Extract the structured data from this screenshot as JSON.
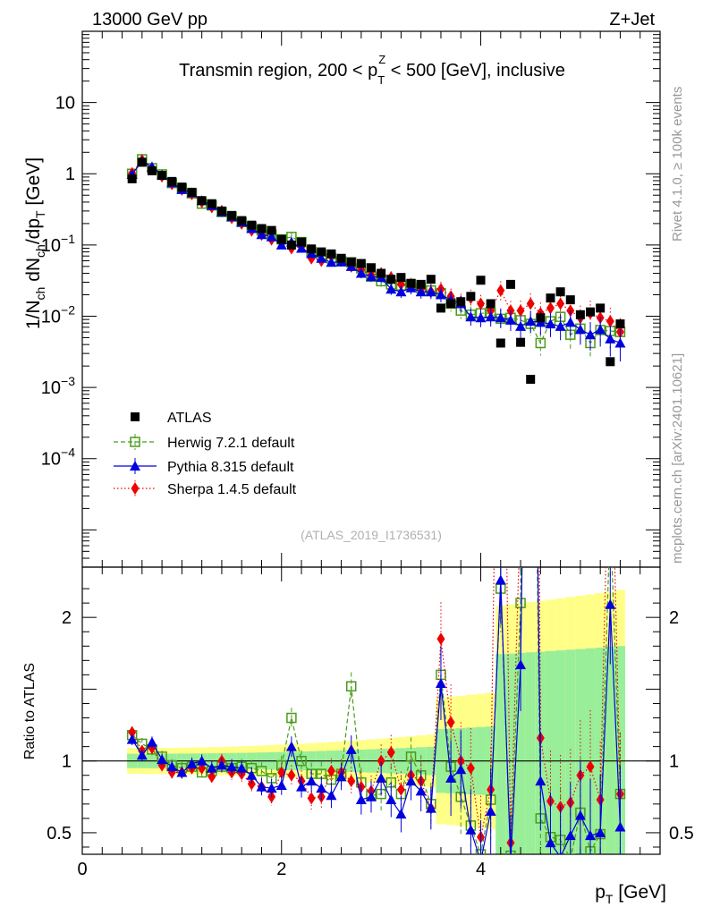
{
  "header": {
    "left": "13000 GeV pp",
    "right": "Z+Jet"
  },
  "side_labels": {
    "rivet": "Rivet 4.1.0, ≥ 100k events",
    "mcplots": "mcplots.cern.ch [arXiv:2401.10621]"
  },
  "chart_data": {
    "type": "scatter",
    "title": "Transmin region, 200 < p_T^Z < 500 [GeV], inclusive",
    "title_parts": {
      "pre": "Transmin region, 200 < p",
      "sup": "Z",
      "sub": "T",
      "post": " < 500 [GeV], inclusive"
    },
    "analysis_tag": "(ATLAS_2019_I1736531)",
    "ylabel": "1/N_ch dN_ch/dp_T [GeV]",
    "ylabel_parts": {
      "a": "1/N",
      "a_sub": "ch",
      "b": " dN",
      "b_sub": "ch",
      "c": "/dp",
      "c_sub": "T",
      "d": " [GeV]"
    },
    "xlabel": "p_T [GeV]",
    "xlabel_parts": {
      "pre": "p",
      "sub": "T",
      "post": " [GeV]"
    },
    "ratio_ylabel": "Ratio to ATLAS",
    "xlim": [
      0,
      5.8
    ],
    "ylim_log": [
      3e-06,
      100
    ],
    "ratio_ylim": [
      0.35,
      2.35
    ],
    "x_ticks": [
      {
        "v": 0,
        "label": "0"
      },
      {
        "v": 2,
        "label": "2"
      },
      {
        "v": 4,
        "label": "4"
      }
    ],
    "y_ticks": [
      {
        "v": 10,
        "label": "10",
        "exp": ""
      },
      {
        "v": 1,
        "label": "1",
        "exp": ""
      },
      {
        "v": 0.1,
        "label": "10",
        "exp": "−1"
      },
      {
        "v": 0.01,
        "label": "10",
        "exp": "−2"
      },
      {
        "v": 0.001,
        "label": "10",
        "exp": "−3"
      },
      {
        "v": 0.0001,
        "label": "10",
        "exp": "−4"
      }
    ],
    "ratio_ticks": [
      {
        "v": 0.5,
        "label": "0.5"
      },
      {
        "v": 1,
        "label": "1"
      },
      {
        "v": 2,
        "label": "2"
      }
    ],
    "legend_position": "lower-left",
    "x": [
      0.5,
      0.6,
      0.7,
      0.8,
      0.9,
      1.0,
      1.1,
      1.2,
      1.3,
      1.4,
      1.5,
      1.6,
      1.7,
      1.8,
      1.9,
      2.0,
      2.1,
      2.2,
      2.3,
      2.4,
      2.5,
      2.6,
      2.7,
      2.8,
      2.9,
      3.0,
      3.1,
      3.2,
      3.3,
      3.4,
      3.5,
      3.6,
      3.7,
      3.8,
      3.9,
      4.0,
      4.1,
      4.2,
      4.3,
      4.4,
      4.5,
      4.6,
      4.7,
      4.8,
      4.9,
      5.0,
      5.1,
      5.2,
      5.3,
      5.4
    ],
    "series": [
      {
        "name": "ATLAS",
        "color": "#000000",
        "marker": "square",
        "values": [
          0.85,
          1.45,
          1.1,
          0.95,
          0.78,
          0.65,
          0.55,
          0.42,
          0.38,
          0.3,
          0.26,
          0.22,
          0.19,
          0.17,
          0.16,
          0.12,
          0.1,
          0.11,
          0.088,
          0.08,
          0.075,
          0.065,
          0.058,
          0.055,
          0.048,
          0.04,
          0.033,
          0.035,
          0.029,
          0.028,
          0.033,
          0.013,
          0.015,
          0.016,
          0.019,
          0.032,
          0.015,
          0.0042,
          0.028,
          0.0043,
          0.0013,
          0.0095,
          0.018,
          0.022,
          0.017,
          0.0105,
          0.0115,
          0.013,
          0.0023,
          0.0078
        ]
      },
      {
        "name": "Herwig 7.2.1 default",
        "color": "#4b9b1b",
        "marker": "open-square",
        "line": "dashed",
        "values": [
          1.0,
          1.6,
          1.2,
          0.98,
          0.74,
          0.62,
          0.53,
          0.38,
          0.36,
          0.29,
          0.25,
          0.21,
          0.18,
          0.16,
          0.14,
          0.12,
          0.13,
          0.11,
          0.08,
          0.073,
          0.065,
          0.059,
          0.057,
          0.047,
          0.036,
          0.031,
          0.028,
          0.027,
          0.028,
          0.025,
          0.023,
          0.021,
          0.015,
          0.012,
          0.0105,
          0.011,
          0.011,
          0.0092,
          0.0095,
          0.0088,
          0.0078,
          0.0042,
          0.0085,
          0.0098,
          0.0055,
          0.0067,
          0.0042,
          0.0064,
          0.0062,
          0.006
        ]
      },
      {
        "name": "Pythia 8.315 default",
        "color": "#0000dd",
        "marker": "triangle",
        "line": "solid",
        "values": [
          0.98,
          1.5,
          1.25,
          0.96,
          0.75,
          0.6,
          0.54,
          0.42,
          0.36,
          0.29,
          0.25,
          0.21,
          0.17,
          0.14,
          0.13,
          0.1,
          0.11,
          0.09,
          0.076,
          0.065,
          0.057,
          0.058,
          0.05,
          0.04,
          0.036,
          0.035,
          0.024,
          0.022,
          0.025,
          0.022,
          0.022,
          0.02,
          0.017,
          0.015,
          0.0098,
          0.0095,
          0.0098,
          0.0095,
          0.0088,
          0.0072,
          0.0085,
          0.0082,
          0.0078,
          0.0072,
          0.0082,
          0.0065,
          0.0055,
          0.0065,
          0.0048,
          0.0042
        ]
      },
      {
        "name": "Sherpa 1.4.5 default",
        "color": "#ee0000",
        "marker": "diamond",
        "line": "dotted",
        "values": [
          1.02,
          1.55,
          1.2,
          0.92,
          0.72,
          0.6,
          0.52,
          0.4,
          0.34,
          0.3,
          0.24,
          0.2,
          0.16,
          0.14,
          0.12,
          0.11,
          0.09,
          0.095,
          0.065,
          0.06,
          0.07,
          0.06,
          0.05,
          0.045,
          0.038,
          0.04,
          0.035,
          0.028,
          0.026,
          0.024,
          0.022,
          0.024,
          0.019,
          0.016,
          0.018,
          0.015,
          0.012,
          0.023,
          0.012,
          0.012,
          0.015,
          0.011,
          0.013,
          0.015,
          0.012,
          0.0095,
          0.011,
          0.0095,
          0.0085,
          0.006
        ]
      }
    ],
    "ratios": [
      {
        "name": "Herwig 7.2.1 default",
        "values": [
          1.18,
          1.12,
          1.08,
          1.03,
          0.97,
          0.95,
          0.96,
          0.92,
          0.93,
          0.96,
          0.95,
          0.96,
          0.95,
          0.93,
          0.88,
          0.97,
          1.3,
          1.0,
          0.91,
          0.91,
          0.87,
          0.91,
          1.52,
          0.85,
          0.76,
          0.77,
          0.85,
          0.77,
          1.03,
          0.9,
          0.7,
          1.6,
          0.96,
          0.75,
          0.55,
          0.35,
          0.73,
          2.2,
          0.34,
          2.1,
          6.0,
          0.6,
          0.47,
          0.45,
          0.32,
          0.64,
          0.37,
          0.49,
          2.7,
          0.77
        ]
      },
      {
        "name": "Pythia 8.315 default",
        "values": [
          1.15,
          1.04,
          1.13,
          1.01,
          0.96,
          0.92,
          0.98,
          1.0,
          0.95,
          0.97,
          0.96,
          0.95,
          0.9,
          0.82,
          0.81,
          0.83,
          1.1,
          0.82,
          0.86,
          0.81,
          0.76,
          0.89,
          1.08,
          0.73,
          0.75,
          0.88,
          0.73,
          0.63,
          0.86,
          0.79,
          0.67,
          1.54,
          0.88,
          0.94,
          0.52,
          0.3,
          0.65,
          2.26,
          0.31,
          1.67,
          6.5,
          0.86,
          0.43,
          0.33,
          0.48,
          0.62,
          0.48,
          0.5,
          2.09,
          0.54
        ]
      },
      {
        "name": "Sherpa 1.4.5 default",
        "values": [
          1.2,
          1.07,
          1.09,
          0.97,
          0.92,
          0.92,
          0.95,
          0.95,
          0.89,
          1.0,
          0.92,
          0.91,
          0.84,
          0.82,
          0.75,
          0.92,
          0.9,
          0.86,
          0.74,
          0.75,
          0.93,
          0.92,
          0.86,
          0.82,
          0.79,
          1.0,
          1.06,
          0.8,
          0.9,
          0.86,
          0.67,
          1.85,
          1.27,
          1.0,
          0.95,
          0.47,
          0.8,
          5.5,
          0.43,
          2.8,
          11.5,
          1.16,
          0.72,
          0.68,
          0.71,
          0.9,
          0.96,
          0.73,
          3.7,
          0.77
        ]
      }
    ]
  }
}
